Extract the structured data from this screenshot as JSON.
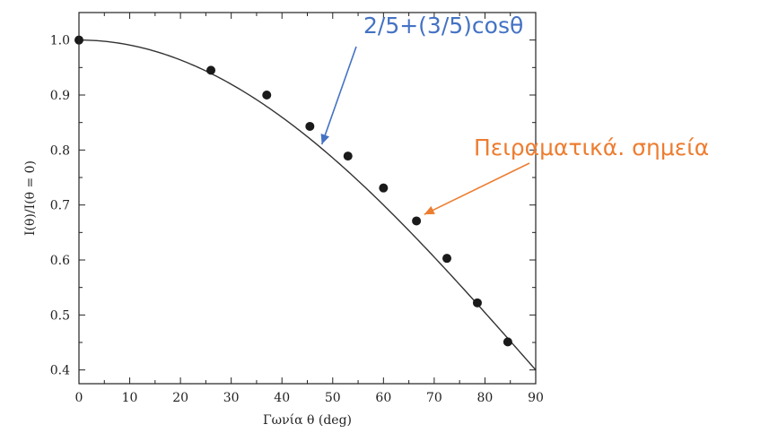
{
  "chart_data": {
    "type": "scatter",
    "xlabel": "Γωνία θ (deg)",
    "ylabel": "I(θ)/I(θ = 0)",
    "xlim": [
      0,
      90
    ],
    "ylim": [
      0.375,
      1.05
    ],
    "x_ticks": [
      "0",
      "10",
      "20",
      "30",
      "40",
      "50",
      "60",
      "70",
      "80",
      "90"
    ],
    "y_ticks": [
      "0.4",
      "0.5",
      "0.6",
      "0.7",
      "0.8",
      "0.9",
      "1.0"
    ],
    "grid": false,
    "series": [
      {
        "kind": "points",
        "x": [
          0,
          26,
          37,
          45.5,
          53,
          60,
          66.5,
          72.5,
          78.5,
          84.5
        ],
        "y": [
          1.0,
          0.945,
          0.9,
          0.843,
          0.789,
          0.731,
          0.671,
          0.603,
          0.522,
          0.451
        ],
        "color": "#1a1a1a"
      },
      {
        "kind": "curve",
        "formula": "2/5+(3/5)cosθ",
        "color": "#333333"
      }
    ],
    "annotations": [
      {
        "text": "2/5+(3/5)cosθ",
        "color": "#4472c4",
        "target": "curve",
        "target_x": 47.5
      },
      {
        "text": "Πειραματικά. σημεία",
        "color": "#ed7d31",
        "target": "points",
        "target_x": 67.5
      }
    ]
  }
}
